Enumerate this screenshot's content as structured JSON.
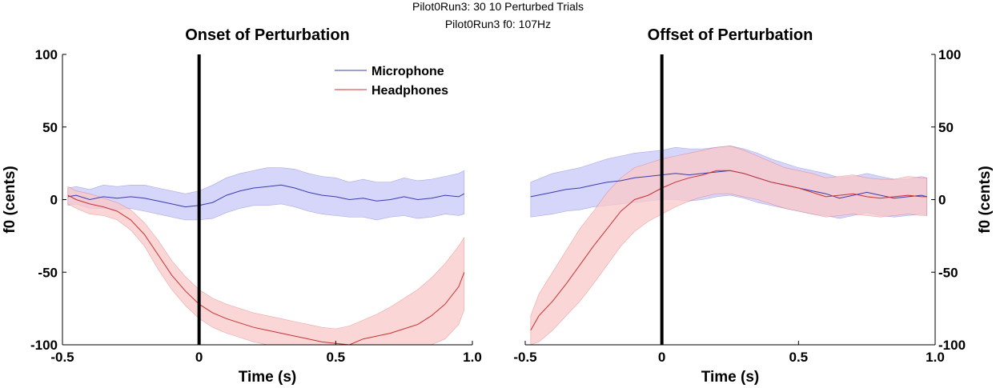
{
  "figure": {
    "suptitle_line1": "Pilot0Run3: 30   10 Perturbed Trials",
    "suptitle_line2": "Pilot0Run3    f0: 107Hz"
  },
  "colors": {
    "microphone_line": "#3b3bb0",
    "microphone_band": "#c8c8fa",
    "headphones_line": "#c83232",
    "headphones_band": "#fac8c8",
    "marker": "#000000"
  },
  "chart_data": [
    {
      "type": "line",
      "title": "Onset of Perturbation",
      "xlabel": "Time (s)",
      "ylabel": "f0 (cents)",
      "xlim": [
        -0.5,
        1.0
      ],
      "ylim": [
        -100,
        100
      ],
      "xticks": [
        -0.5,
        0,
        0.5,
        1.0
      ],
      "xtick_labels": [
        "-0.5",
        "0",
        "0.5",
        "1.0"
      ],
      "yticks": [
        -100,
        -50,
        0,
        50,
        100
      ],
      "ytick_labels": [
        "-100",
        "-50",
        "0",
        "50",
        "100"
      ],
      "y_axis_side": "left",
      "grid": false,
      "legend": {
        "placement": "top-center",
        "entries": [
          "Microphone",
          "Headphones"
        ]
      },
      "vertical_marker_x": 0,
      "series": [
        {
          "name": "Microphone",
          "x": [
            -0.48,
            -0.45,
            -0.4,
            -0.35,
            -0.3,
            -0.25,
            -0.2,
            -0.15,
            -0.1,
            -0.05,
            0.0,
            0.05,
            0.1,
            0.15,
            0.2,
            0.25,
            0.3,
            0.35,
            0.4,
            0.45,
            0.5,
            0.55,
            0.6,
            0.65,
            0.7,
            0.75,
            0.8,
            0.85,
            0.9,
            0.95,
            0.97
          ],
          "mean": [
            2,
            3,
            0,
            2,
            1,
            2,
            1,
            -1,
            -3,
            -5,
            -4,
            -2,
            3,
            6,
            8,
            9,
            10,
            8,
            5,
            3,
            2,
            0,
            1,
            -1,
            0,
            2,
            0,
            1,
            3,
            2,
            4
          ],
          "upper": [
            8,
            9,
            7,
            10,
            9,
            10,
            10,
            8,
            6,
            4,
            6,
            10,
            15,
            18,
            20,
            22,
            22,
            21,
            18,
            16,
            15,
            12,
            14,
            12,
            12,
            15,
            13,
            14,
            16,
            18,
            20
          ],
          "lower": [
            -4,
            -3,
            -6,
            -6,
            -7,
            -6,
            -8,
            -10,
            -12,
            -14,
            -14,
            -13,
            -9,
            -6,
            -4,
            -4,
            -3,
            -5,
            -8,
            -10,
            -11,
            -12,
            -12,
            -14,
            -12,
            -11,
            -13,
            -12,
            -10,
            -11,
            -10
          ]
        },
        {
          "name": "Headphones",
          "x": [
            -0.48,
            -0.45,
            -0.4,
            -0.35,
            -0.3,
            -0.25,
            -0.2,
            -0.15,
            -0.1,
            -0.05,
            0.0,
            0.05,
            0.1,
            0.15,
            0.2,
            0.25,
            0.3,
            0.35,
            0.4,
            0.45,
            0.5,
            0.55,
            0.6,
            0.65,
            0.7,
            0.75,
            0.8,
            0.85,
            0.9,
            0.95,
            0.97
          ],
          "mean": [
            3,
            0,
            -3,
            -5,
            -8,
            -14,
            -24,
            -38,
            -52,
            -63,
            -72,
            -78,
            -82,
            -85,
            -88,
            -90,
            -92,
            -94,
            -96,
            -98,
            -99,
            -100,
            -96,
            -94,
            -92,
            -89,
            -86,
            -80,
            -72,
            -60,
            -50
          ],
          "upper": [
            9,
            6,
            4,
            1,
            -2,
            -7,
            -16,
            -28,
            -42,
            -53,
            -62,
            -68,
            -72,
            -75,
            -78,
            -80,
            -82,
            -84,
            -86,
            -88,
            -89,
            -87,
            -83,
            -79,
            -74,
            -68,
            -62,
            -54,
            -44,
            -32,
            -26
          ],
          "lower": [
            -3,
            -6,
            -10,
            -11,
            -14,
            -21,
            -32,
            -48,
            -62,
            -73,
            -82,
            -88,
            -92,
            -95,
            -98,
            -100,
            -100,
            -100,
            -100,
            -100,
            -100,
            -100,
            -100,
            -100,
            -100,
            -100,
            -100,
            -100,
            -96,
            -86,
            -76
          ]
        }
      ]
    },
    {
      "type": "line",
      "title": "Offset of Perturbation",
      "xlabel": "Time (s)",
      "ylabel": "f0 (cents)",
      "xlim": [
        -0.5,
        1.0
      ],
      "ylim": [
        -100,
        100
      ],
      "xticks": [
        -0.5,
        0,
        0.5,
        1.0
      ],
      "xtick_labels": [
        "-0.5",
        "0",
        "0.5",
        "1.0"
      ],
      "yticks": [
        -100,
        -50,
        0,
        50,
        100
      ],
      "ytick_labels": [
        "-100",
        "-50",
        "0",
        "50",
        "100"
      ],
      "y_axis_side": "right",
      "grid": false,
      "vertical_marker_x": 0,
      "series": [
        {
          "name": "Microphone",
          "x": [
            -0.48,
            -0.4,
            -0.35,
            -0.3,
            -0.25,
            -0.2,
            -0.15,
            -0.1,
            -0.05,
            0.0,
            0.05,
            0.1,
            0.15,
            0.2,
            0.25,
            0.3,
            0.35,
            0.4,
            0.45,
            0.5,
            0.55,
            0.6,
            0.65,
            0.7,
            0.75,
            0.8,
            0.85,
            0.9,
            0.95,
            0.97
          ],
          "mean": [
            2,
            5,
            7,
            8,
            10,
            12,
            13,
            15,
            16,
            17,
            18,
            17,
            18,
            19,
            20,
            18,
            15,
            12,
            10,
            8,
            6,
            4,
            1,
            3,
            5,
            3,
            1,
            2,
            3,
            2
          ],
          "upper": [
            12,
            18,
            20,
            22,
            25,
            28,
            30,
            32,
            33,
            34,
            36,
            35,
            35,
            36,
            37,
            35,
            32,
            28,
            25,
            22,
            20,
            18,
            15,
            16,
            18,
            16,
            14,
            14,
            16,
            15
          ],
          "lower": [
            -12,
            -10,
            -8,
            -7,
            -5,
            -4,
            -3,
            -2,
            -1,
            0,
            0,
            -1,
            0,
            2,
            3,
            1,
            -2,
            -4,
            -6,
            -8,
            -10,
            -11,
            -13,
            -11,
            -9,
            -11,
            -12,
            -11,
            -10,
            -11
          ]
        },
        {
          "name": "Headphones",
          "x": [
            -0.48,
            -0.45,
            -0.4,
            -0.35,
            -0.3,
            -0.25,
            -0.2,
            -0.15,
            -0.1,
            -0.05,
            0.0,
            0.05,
            0.1,
            0.15,
            0.2,
            0.25,
            0.3,
            0.35,
            0.4,
            0.45,
            0.5,
            0.55,
            0.6,
            0.65,
            0.7,
            0.75,
            0.8,
            0.85,
            0.9,
            0.95,
            0.97
          ],
          "mean": [
            -90,
            -80,
            -70,
            -58,
            -45,
            -32,
            -20,
            -8,
            0,
            3,
            8,
            12,
            15,
            17,
            20,
            20,
            18,
            15,
            12,
            10,
            8,
            5,
            2,
            3,
            4,
            2,
            1,
            2,
            3,
            2,
            2
          ],
          "upper": [
            -80,
            -65,
            -50,
            -35,
            -20,
            -8,
            5,
            15,
            22,
            25,
            28,
            30,
            32,
            34,
            36,
            37,
            34,
            30,
            26,
            22,
            20,
            18,
            15,
            16,
            17,
            15,
            14,
            14,
            16,
            15,
            15
          ],
          "lower": [
            -100,
            -98,
            -90,
            -80,
            -70,
            -58,
            -45,
            -32,
            -22,
            -15,
            -10,
            -5,
            -1,
            2,
            4,
            4,
            2,
            0,
            -3,
            -6,
            -8,
            -10,
            -12,
            -11,
            -10,
            -11,
            -12,
            -11,
            -10,
            -11,
            -11
          ]
        }
      ]
    }
  ]
}
